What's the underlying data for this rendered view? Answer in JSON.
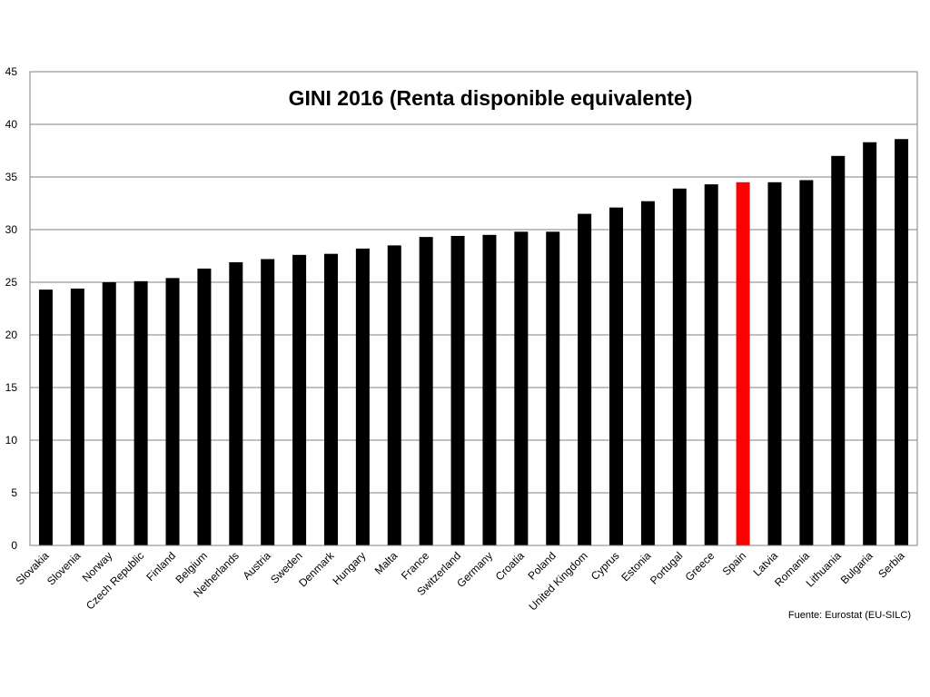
{
  "chart_data": {
    "type": "bar",
    "title": "GINI 2016 (Renta disponible equivalente)",
    "xlabel": "",
    "ylabel": "",
    "ylim": [
      0,
      45
    ],
    "yticks": [
      0,
      5,
      10,
      15,
      20,
      25,
      30,
      35,
      40,
      45
    ],
    "grid": true,
    "legend": "none",
    "categories": [
      "Slovakia",
      "Slovenia",
      "Norway",
      "Czech Republic",
      "Finland",
      "Belgium",
      "Netherlands",
      "Austria",
      "Sweden",
      "Denmark",
      "Hungary",
      "Malta",
      "France",
      "Switzerland",
      "Germany",
      "Croatia",
      "Poland",
      "United Kingdom",
      "Cyprus",
      "Estonia",
      "Portugal",
      "Greece",
      "Spain",
      "Latvia",
      "Romania",
      "Lithuania",
      "Bulgaria",
      "Serbia"
    ],
    "values": [
      24.3,
      24.4,
      25.0,
      25.1,
      25.4,
      26.3,
      26.9,
      27.2,
      27.6,
      27.7,
      28.2,
      28.5,
      29.3,
      29.4,
      29.5,
      29.8,
      29.8,
      31.5,
      32.1,
      32.7,
      33.9,
      34.3,
      34.5,
      34.5,
      34.7,
      37.0,
      38.3,
      38.6
    ],
    "bar_color": "#000000",
    "highlight_category": "Spain",
    "highlight_color": "#ff0000"
  },
  "footer": {
    "source": "Fuente: Eurostat (EU-SILC)"
  }
}
